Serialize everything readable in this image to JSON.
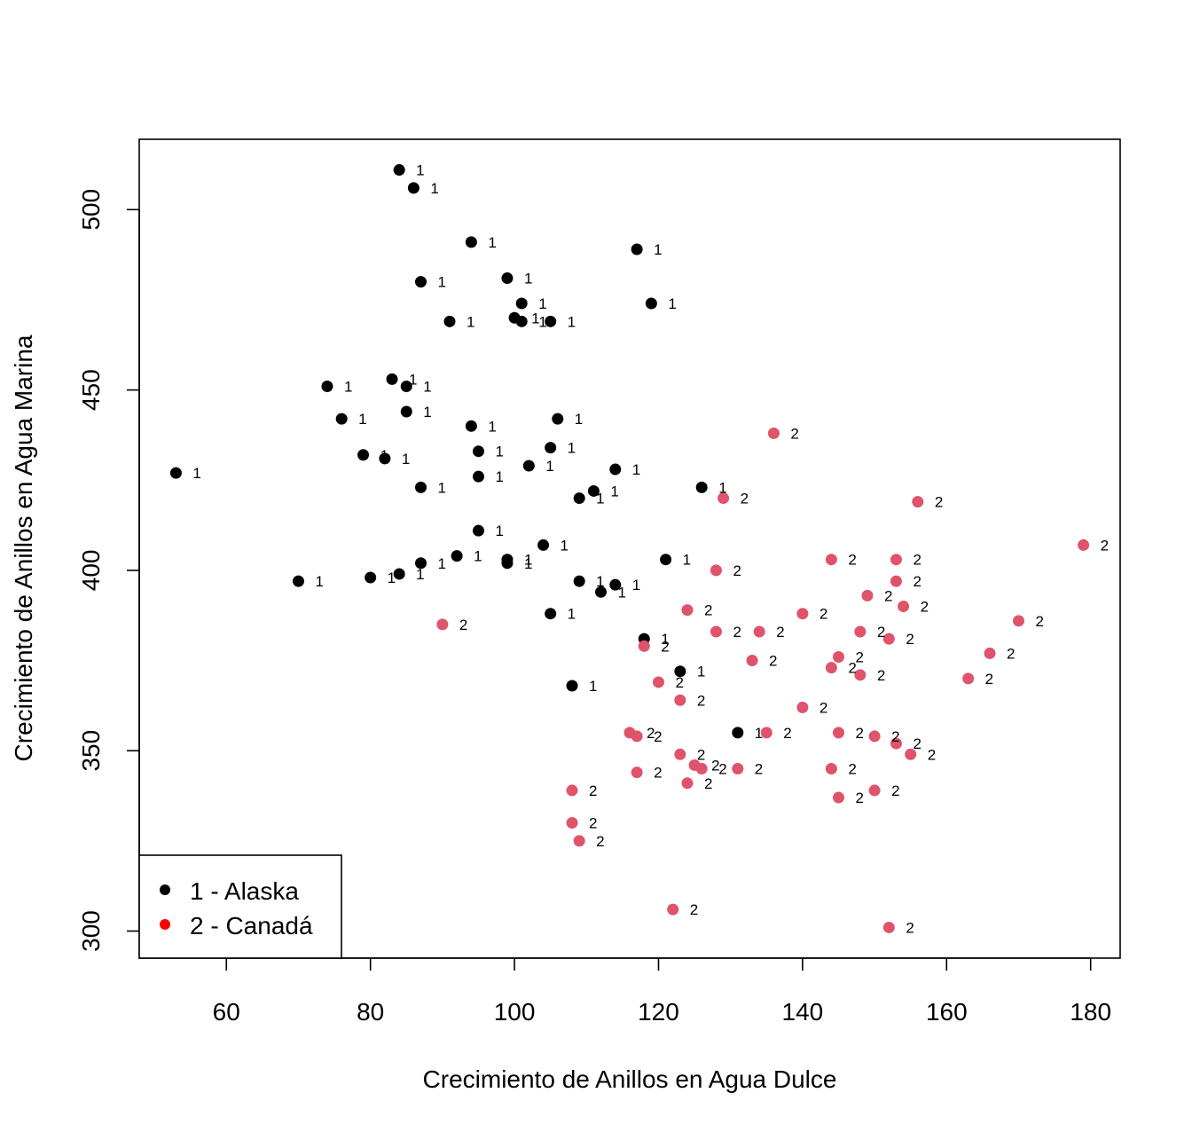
{
  "chart_data": {
    "type": "scatter",
    "title": "",
    "xlabel": "Crecimiento de Anillos en Agua Dulce",
    "ylabel": "Crecimiento de Anillos en Agua Marina",
    "xlim": [
      47.9,
      184.1
    ],
    "ylim": [
      292.5,
      519.5
    ],
    "xticks": [
      60,
      80,
      100,
      120,
      140,
      160,
      180
    ],
    "yticks": [
      300,
      350,
      400,
      450,
      500
    ],
    "grid": false,
    "legend": {
      "placement": "bottom-left",
      "entries": [
        {
          "label": "1 - Alaska",
          "color": "#000000"
        },
        {
          "label": "2 - Canadá",
          "color": "#ff0000"
        }
      ]
    },
    "series": [
      {
        "code": "1",
        "color": "#000000",
        "points": [
          [
            84,
            511
          ],
          [
            86,
            506
          ],
          [
            94,
            491
          ],
          [
            117,
            489
          ],
          [
            99,
            481
          ],
          [
            87,
            480
          ],
          [
            101,
            474
          ],
          [
            119,
            474
          ],
          [
            91,
            469
          ],
          [
            100,
            470
          ],
          [
            101,
            469
          ],
          [
            105,
            469
          ],
          [
            74,
            451
          ],
          [
            83,
            453
          ],
          [
            85,
            451
          ],
          [
            76,
            442
          ],
          [
            85,
            444
          ],
          [
            94,
            440
          ],
          [
            106,
            442
          ],
          [
            53,
            427
          ],
          [
            79,
            432
          ],
          [
            82,
            431
          ],
          [
            95,
            433
          ],
          [
            105,
            434
          ],
          [
            102,
            429
          ],
          [
            87,
            423
          ],
          [
            95,
            426
          ],
          [
            114,
            428
          ],
          [
            111,
            422
          ],
          [
            109,
            420
          ],
          [
            126,
            423
          ],
          [
            95,
            411
          ],
          [
            104,
            407
          ],
          [
            70,
            397
          ],
          [
            80,
            398
          ],
          [
            84,
            399
          ],
          [
            87,
            402
          ],
          [
            92,
            404
          ],
          [
            99,
            403
          ],
          [
            99,
            402
          ],
          [
            109,
            397
          ],
          [
            112,
            394
          ],
          [
            114,
            396
          ],
          [
            121,
            403
          ],
          [
            105,
            388
          ],
          [
            118,
            381
          ],
          [
            123,
            372
          ],
          [
            108,
            368
          ],
          [
            131,
            355
          ]
        ]
      },
      {
        "code": "2",
        "color": "#df536b",
        "points": [
          [
            136,
            438
          ],
          [
            129,
            420
          ],
          [
            156,
            419
          ],
          [
            179,
            407
          ],
          [
            144,
            403
          ],
          [
            153,
            403
          ],
          [
            128,
            400
          ],
          [
            153,
            397
          ],
          [
            149,
            393
          ],
          [
            154,
            390
          ],
          [
            124,
            389
          ],
          [
            140,
            388
          ],
          [
            170,
            386
          ],
          [
            90,
            385
          ],
          [
            128,
            383
          ],
          [
            134,
            383
          ],
          [
            148,
            383
          ],
          [
            152,
            381
          ],
          [
            118,
            379
          ],
          [
            166,
            377
          ],
          [
            145,
            376
          ],
          [
            133,
            375
          ],
          [
            144,
            373
          ],
          [
            148,
            371
          ],
          [
            163,
            370
          ],
          [
            120,
            369
          ],
          [
            123,
            364
          ],
          [
            140,
            362
          ],
          [
            116,
            355
          ],
          [
            117,
            354
          ],
          [
            135,
            355
          ],
          [
            145,
            355
          ],
          [
            150,
            354
          ],
          [
            153,
            352
          ],
          [
            123,
            349
          ],
          [
            155,
            349
          ],
          [
            125,
            346
          ],
          [
            126,
            345
          ],
          [
            131,
            345
          ],
          [
            144,
            345
          ],
          [
            117,
            344
          ],
          [
            124,
            341
          ],
          [
            108,
            339
          ],
          [
            150,
            339
          ],
          [
            145,
            337
          ],
          [
            108,
            330
          ],
          [
            109,
            325
          ],
          [
            122,
            306
          ],
          [
            152,
            301
          ]
        ]
      }
    ]
  }
}
